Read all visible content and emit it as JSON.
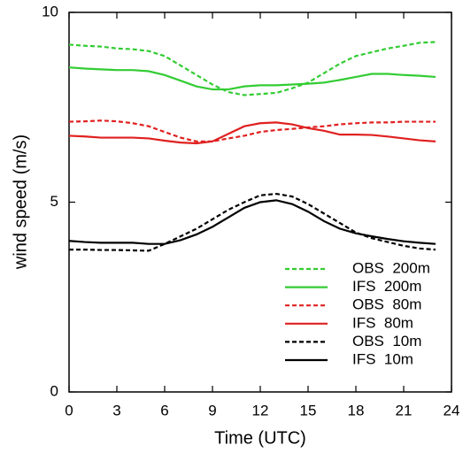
{
  "chart_data": {
    "type": "line",
    "x_label": "Time (UTC)",
    "y_label": "wind speed (m/s)",
    "x": [
      0,
      1,
      2,
      3,
      4,
      5,
      6,
      7,
      8,
      9,
      10,
      11,
      12,
      13,
      14,
      15,
      16,
      17,
      18,
      19,
      20,
      21,
      22,
      23
    ],
    "xlim": [
      0,
      24
    ],
    "xticks": [
      0,
      3,
      6,
      9,
      12,
      15,
      18,
      21,
      24
    ],
    "ylim": [
      0,
      10
    ],
    "yticks": [
      0,
      5,
      10
    ],
    "legend": "lower right",
    "series": [
      {
        "name": "OBS  200m",
        "color": "#33cc33",
        "style": "dashed",
        "values": [
          9.15,
          9.12,
          9.1,
          9.05,
          9.03,
          8.98,
          8.85,
          8.6,
          8.35,
          8.1,
          7.9,
          7.82,
          7.85,
          7.88,
          8.0,
          8.15,
          8.4,
          8.65,
          8.85,
          8.95,
          9.05,
          9.12,
          9.2,
          9.22
        ]
      },
      {
        "name": "IFS  200m",
        "color": "#33cc33",
        "style": "solid",
        "values": [
          8.55,
          8.52,
          8.5,
          8.48,
          8.48,
          8.45,
          8.35,
          8.2,
          8.05,
          7.97,
          7.97,
          8.05,
          8.08,
          8.08,
          8.1,
          8.12,
          8.15,
          8.22,
          8.3,
          8.38,
          8.38,
          8.35,
          8.33,
          8.3
        ]
      },
      {
        "name": "OBS  80m",
        "color": "#e02020",
        "style": "dashed",
        "values": [
          7.12,
          7.13,
          7.15,
          7.13,
          7.08,
          7.0,
          6.85,
          6.7,
          6.6,
          6.6,
          6.68,
          6.75,
          6.85,
          6.9,
          6.93,
          6.97,
          7.0,
          7.05,
          7.08,
          7.1,
          7.1,
          7.12,
          7.12,
          7.12
        ]
      },
      {
        "name": "IFS  80m",
        "color": "#e02020",
        "style": "solid",
        "values": [
          6.75,
          6.73,
          6.7,
          6.7,
          6.7,
          6.68,
          6.62,
          6.57,
          6.55,
          6.6,
          6.8,
          7.0,
          7.08,
          7.1,
          7.05,
          6.95,
          6.88,
          6.78,
          6.78,
          6.77,
          6.73,
          6.68,
          6.63,
          6.6
        ]
      },
      {
        "name": "OBS  10m",
        "color": "#000000",
        "style": "dashed",
        "values": [
          3.75,
          3.75,
          3.74,
          3.74,
          3.73,
          3.72,
          3.9,
          4.1,
          4.3,
          4.55,
          4.8,
          5.0,
          5.18,
          5.22,
          5.15,
          4.95,
          4.7,
          4.45,
          4.2,
          4.05,
          3.95,
          3.85,
          3.78,
          3.75
        ]
      },
      {
        "name": "IFS  10m",
        "color": "#000000",
        "style": "solid",
        "values": [
          3.98,
          3.95,
          3.93,
          3.93,
          3.93,
          3.9,
          3.9,
          4.0,
          4.15,
          4.35,
          4.6,
          4.85,
          5.0,
          5.05,
          4.95,
          4.75,
          4.5,
          4.3,
          4.18,
          4.1,
          4.03,
          3.97,
          3.93,
          3.9
        ]
      }
    ]
  }
}
